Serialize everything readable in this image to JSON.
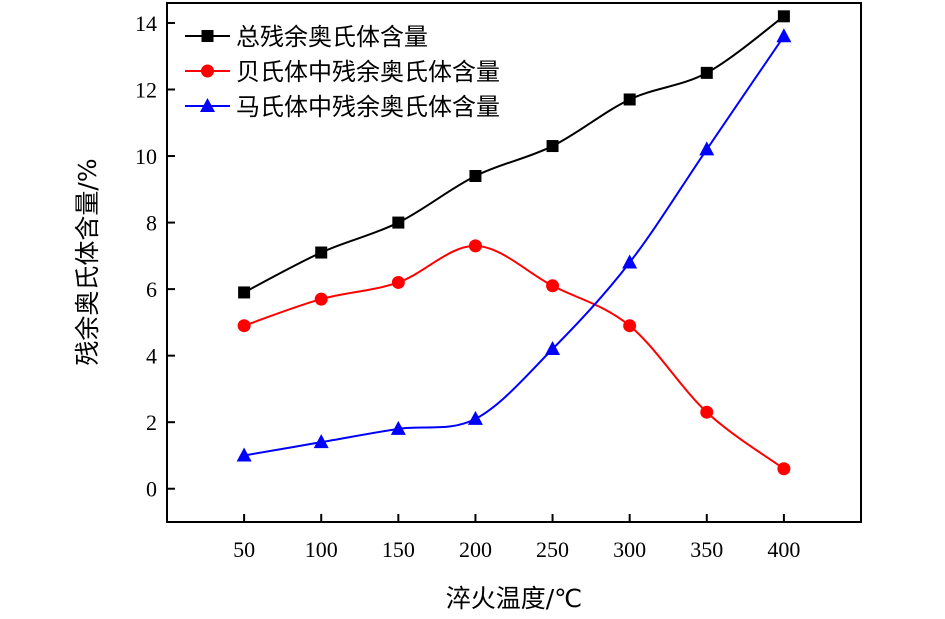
{
  "chart_data": {
    "type": "line",
    "xlabel": "淬火温度/℃",
    "ylabel": "残余奥氏体含量/%",
    "categories": [
      "50",
      "100",
      "150",
      "200",
      "250",
      "300",
      "350",
      "400"
    ],
    "x": [
      50,
      100,
      150,
      200,
      250,
      300,
      350,
      400
    ],
    "xlim": [
      0,
      450
    ],
    "ylim": [
      -1,
      14.6
    ],
    "yticks": [
      0,
      2,
      4,
      6,
      8,
      10,
      12,
      14
    ],
    "grid": false,
    "legend_position": "top-left",
    "series": [
      {
        "name": "总残余奥氏体含量",
        "color": "#000000",
        "marker": "square",
        "values": [
          5.9,
          7.1,
          8.0,
          9.4,
          10.3,
          11.7,
          12.5,
          14.2
        ]
      },
      {
        "name": "贝氏体中残余奥氏体含量",
        "color": "#ff0000",
        "marker": "circle",
        "values": [
          4.9,
          5.7,
          6.2,
          7.3,
          6.1,
          4.9,
          2.3,
          0.6
        ]
      },
      {
        "name": "马氏体中残余奥氏体含量",
        "color": "#0000ff",
        "marker": "triangle",
        "values": [
          1.0,
          1.4,
          1.8,
          2.1,
          4.2,
          6.8,
          10.2,
          13.6
        ]
      }
    ]
  }
}
